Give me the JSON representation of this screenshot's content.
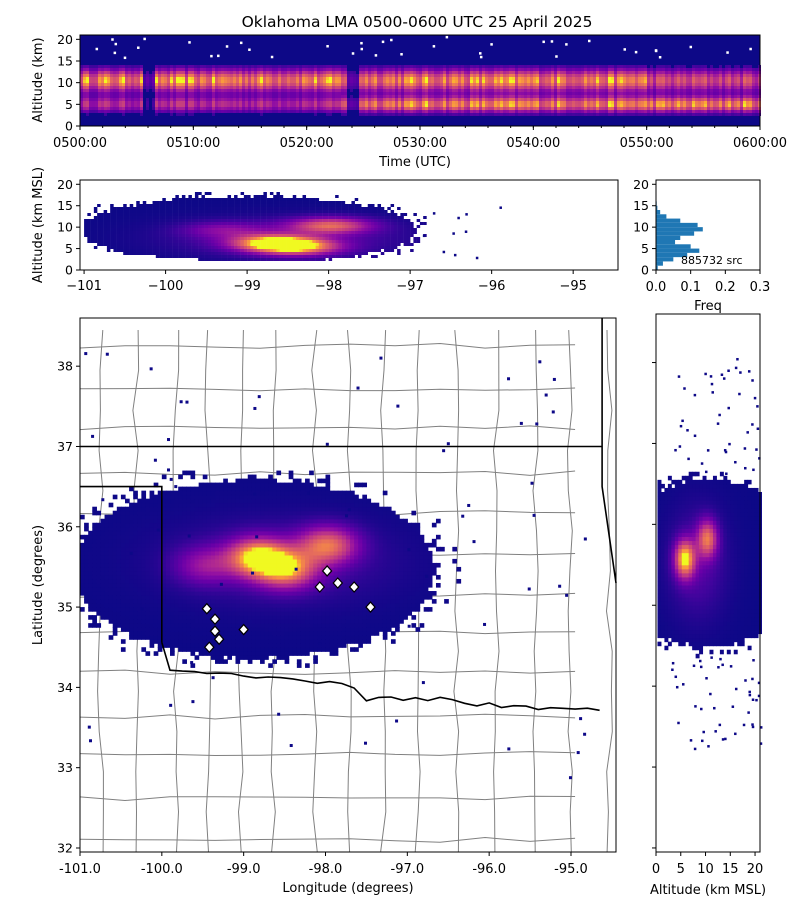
{
  "chart_data": [
    {
      "id": "time_altitude",
      "type": "heatmap",
      "title": "Oklahoma LMA 0500-0600 UTC 25 April 2025",
      "xlabel": "Time (UTC)",
      "ylabel": "Altitude (km)",
      "x_ticks": [
        "0500:00",
        "0510:00",
        "0520:00",
        "0530:00",
        "0540:00",
        "0550:00",
        "0600:00"
      ],
      "xlim": [
        "0500:00",
        "0600:00"
      ],
      "y_ticks": [
        0,
        5,
        10,
        15,
        20
      ],
      "ylim": [
        0,
        21
      ],
      "colormap": "plasma",
      "bands_km": [
        {
          "center": 10.5,
          "spread": 1.8,
          "weight": 1.0
        },
        {
          "center": 5.0,
          "spread": 1.3,
          "weight": 0.85
        }
      ],
      "lower_band_strong_after": "0523:00",
      "gaps_utc": [
        "0506:30",
        "0524:00"
      ]
    },
    {
      "id": "longitude_altitude",
      "type": "heatmap",
      "xlabel": "",
      "ylabel": "Altitude (km MSL)",
      "x_ticks": [
        -101,
        -100,
        -99,
        -98,
        -97,
        -96,
        -95
      ],
      "xlim": [
        -101.05,
        -94.45
      ],
      "y_ticks": [
        0,
        5,
        10,
        15,
        20
      ],
      "ylim": [
        0,
        21
      ],
      "colormap": "plasma",
      "hotspots": [
        {
          "lon": -98.7,
          "alt": 6.0,
          "intensity": 1.0
        },
        {
          "lon": -98.4,
          "alt": 5.0,
          "intensity": 0.85
        },
        {
          "lon": -98.0,
          "alt": 10.0,
          "intensity": 0.75
        },
        {
          "lon": -99.3,
          "alt": 9.0,
          "intensity": 0.3
        }
      ]
    },
    {
      "id": "altitude_histogram",
      "type": "bar",
      "orientation": "horizontal",
      "xlabel": "Freq",
      "x_ticks": [
        "0.0",
        "0.1",
        "0.2",
        "0.3"
      ],
      "xlim": [
        0,
        0.3
      ],
      "y_ticks": [
        0,
        5,
        10,
        15,
        20
      ],
      "ylim": [
        0,
        21
      ],
      "annotation": "885732 src",
      "color": "#1f77b4",
      "bins_km": [
        0.5,
        1.5,
        2.5,
        3.5,
        4.5,
        5.5,
        6.5,
        7.5,
        8.5,
        9.5,
        10.5,
        11.5,
        12.5,
        13.5,
        14.5,
        15.5,
        16.5,
        17.5
      ],
      "values": [
        0.005,
        0.02,
        0.05,
        0.09,
        0.125,
        0.1,
        0.055,
        0.07,
        0.11,
        0.135,
        0.12,
        0.07,
        0.03,
        0.012,
        0.004,
        0.002,
        0.001,
        0.0005
      ]
    },
    {
      "id": "plan_view",
      "type": "heatmap",
      "xlabel": "Longitude (degrees)",
      "ylabel": "Latitude (degrees)",
      "x_ticks": [
        "-101.0",
        "-100.0",
        "-99.0",
        "-98.0",
        "-97.0",
        "-96.0",
        "-95.0"
      ],
      "xlim": [
        -101.0,
        -94.45
      ],
      "y_ticks": [
        32,
        33,
        34,
        35,
        36,
        37,
        38
      ],
      "ylim": [
        31.95,
        38.6
      ],
      "colormap": "plasma",
      "hotspots": [
        {
          "lon": -98.85,
          "lat": 35.6,
          "intensity": 1.0
        },
        {
          "lon": -98.5,
          "lat": 35.45,
          "intensity": 0.8
        },
        {
          "lon": -98.0,
          "lat": 35.75,
          "intensity": 0.75
        },
        {
          "lon": -99.5,
          "lat": 35.5,
          "intensity": 0.35
        }
      ],
      "stations": [
        {
          "lon": -97.98,
          "lat": 35.45
        },
        {
          "lon": -98.07,
          "lat": 35.25
        },
        {
          "lon": -97.85,
          "lat": 35.3
        },
        {
          "lon": -97.65,
          "lat": 35.25
        },
        {
          "lon": -97.45,
          "lat": 35.0
        },
        {
          "lon": -99.45,
          "lat": 34.98
        },
        {
          "lon": -99.35,
          "lat": 34.85
        },
        {
          "lon": -99.35,
          "lat": 34.7
        },
        {
          "lon": -99.0,
          "lat": 34.72
        },
        {
          "lon": -99.3,
          "lat": 34.6
        },
        {
          "lon": -99.42,
          "lat": 34.5
        }
      ]
    },
    {
      "id": "altitude_latitude",
      "type": "heatmap",
      "xlabel": "Altitude (km MSL)",
      "ylabel": "",
      "x_ticks": [
        0,
        5,
        10,
        15,
        20
      ],
      "xlim": [
        0,
        21
      ],
      "ylim": [
        31.95,
        38.6
      ],
      "colormap": "plasma",
      "hotspots": [
        {
          "alt": 5.5,
          "lat": 35.55,
          "intensity": 1.0
        },
        {
          "alt": 10.0,
          "lat": 35.8,
          "intensity": 0.75
        }
      ]
    }
  ],
  "colors": {
    "cmap_low": "#0d0887",
    "cmap_mid": "#9c179e",
    "cmap_high": "#f0f921",
    "hist_bar": "#1f77b4",
    "county_line": "#808080",
    "state_line": "#000000"
  }
}
